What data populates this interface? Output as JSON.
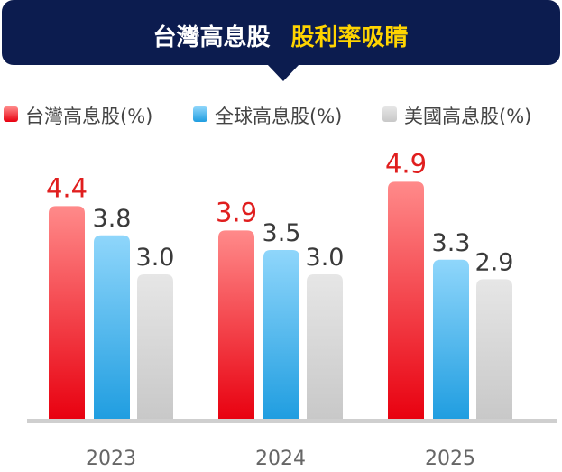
{
  "chart_data": {
    "type": "bar",
    "title_part1": "台灣高息股",
    "title_part2": "股利率吸睛",
    "categories": [
      "2023",
      "2024",
      "2025"
    ],
    "series": [
      {
        "name": "台灣高息股(%)",
        "values": [
          4.4,
          3.9,
          4.9
        ],
        "color_top": "#ff8a8a",
        "color_bottom": "#e8000f",
        "label_color": "#e01e1e"
      },
      {
        "name": "全球高息股(%)",
        "values": [
          3.8,
          3.5,
          3.3
        ],
        "color_top": "#8fd6fb",
        "color_bottom": "#1f9de0",
        "label_color": "#3a3a3a"
      },
      {
        "name": "美國高息股(%)",
        "values": [
          3.0,
          3.0,
          2.9
        ],
        "color_top": "#e6e6e6",
        "color_bottom": "#c8c8c8",
        "label_color": "#3a3a3a"
      }
    ],
    "ylim": [
      0,
      5
    ],
    "legend_position": "top",
    "grid": false
  },
  "colors": {
    "header_bg": "#0c1c4f",
    "title_white": "#ffffff",
    "title_yellow": "#ffd400"
  }
}
